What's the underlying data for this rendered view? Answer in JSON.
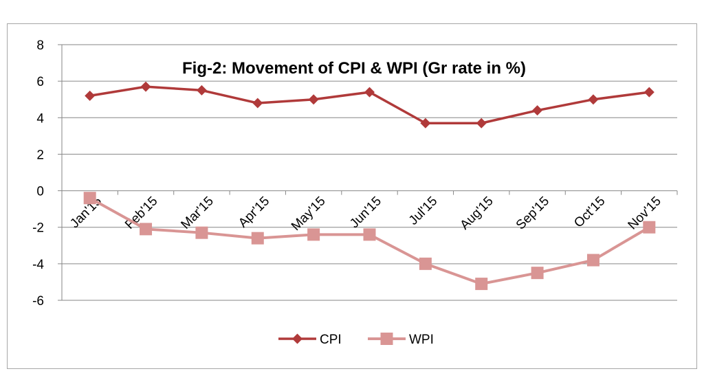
{
  "chart_data": {
    "type": "line",
    "title": "Fig-2: Movement of CPI & WPI (Gr rate in %)",
    "categories": [
      "Jan'15",
      "Feb'15",
      "Mar'15",
      "Apr'15",
      "May'15",
      "Jun'15",
      "Jul'15",
      "Aug'15",
      "Sep'15",
      "Oct'15",
      "Nov'15"
    ],
    "series": [
      {
        "name": "CPI",
        "values": [
          5.2,
          5.7,
          5.5,
          4.8,
          5.0,
          5.4,
          3.7,
          3.7,
          4.4,
          5.0,
          5.4
        ],
        "color": "#b03a3a",
        "marker": "diamond"
      },
      {
        "name": "WPI",
        "values": [
          -0.4,
          -2.1,
          -2.3,
          -2.6,
          -2.4,
          -2.4,
          -4.0,
          -5.1,
          -4.5,
          -3.8,
          -2.0
        ],
        "color": "#d99594",
        "marker": "square"
      }
    ],
    "ylim": [
      -6,
      8
    ],
    "yticks": [
      8,
      6,
      4,
      2,
      0,
      -2,
      -4,
      -6
    ],
    "xlabel": "",
    "ylabel": "",
    "grid": true,
    "legend": "bottom"
  }
}
